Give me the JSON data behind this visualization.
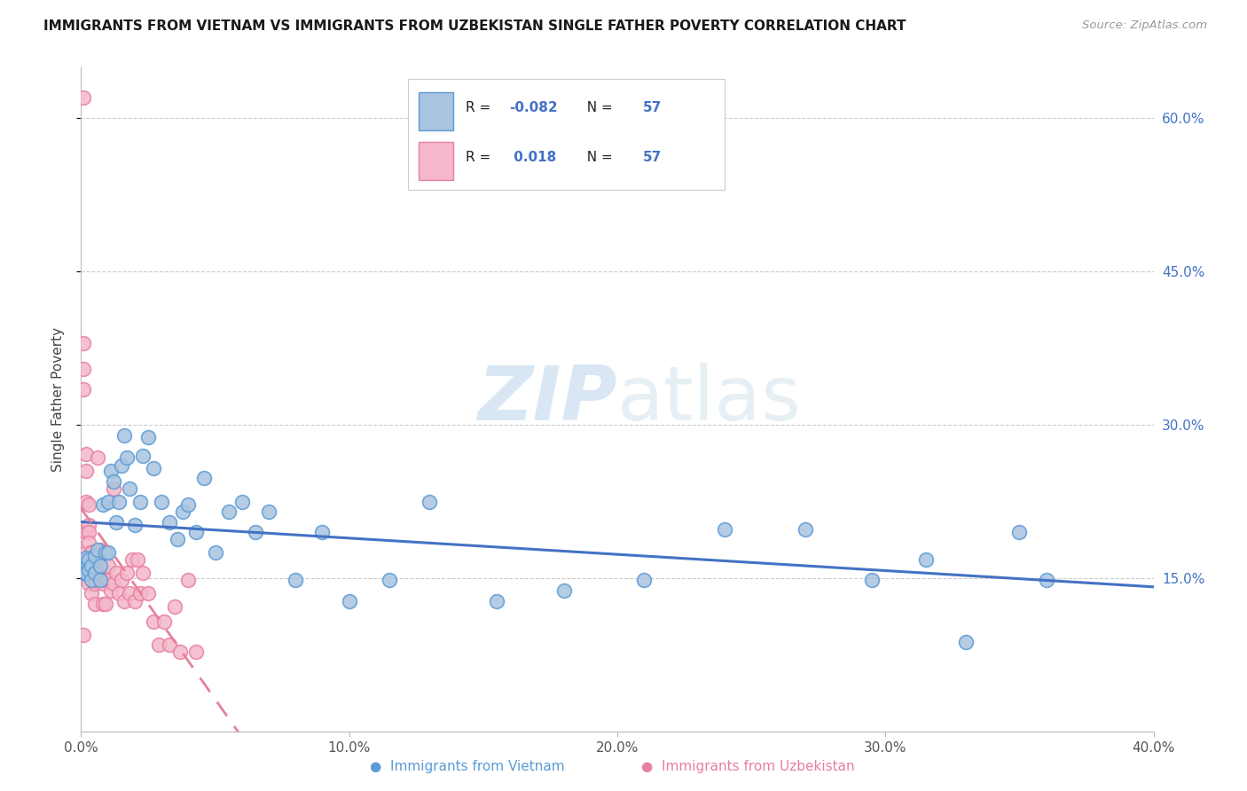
{
  "title": "IMMIGRANTS FROM VIETNAM VS IMMIGRANTS FROM UZBEKISTAN SINGLE FATHER POVERTY CORRELATION CHART",
  "source": "Source: ZipAtlas.com",
  "ylabel": "Single Father Poverty",
  "xlim": [
    0.0,
    0.4
  ],
  "ylim": [
    0.0,
    0.65
  ],
  "xticks": [
    0.0,
    0.1,
    0.2,
    0.3,
    0.4
  ],
  "yticks": [
    0.15,
    0.3,
    0.45,
    0.6
  ],
  "right_ytick_labels": [
    "15.0%",
    "30.0%",
    "45.0%",
    "60.0%"
  ],
  "xtick_labels": [
    "0.0%",
    "10.0%",
    "20.0%",
    "30.0%",
    "40.0%"
  ],
  "color_vietnam_fill": "#a8c4e0",
  "color_vietnam_edge": "#5b9bd5",
  "color_uzbekistan_fill": "#f4b8ca",
  "color_uzbekistan_edge": "#e87fa0",
  "color_vietnam_line": "#4472c4",
  "color_uzbekistan_line": "#e8809a",
  "watermark_color": "#cce0f0",
  "legend_r_color": "#4472c4",
  "legend_n_color": "#4472c4",
  "vietnam_x": [
    0.001,
    0.001,
    0.002,
    0.002,
    0.003,
    0.003,
    0.004,
    0.004,
    0.005,
    0.005,
    0.006,
    0.007,
    0.007,
    0.008,
    0.009,
    0.01,
    0.01,
    0.011,
    0.012,
    0.013,
    0.014,
    0.015,
    0.016,
    0.017,
    0.018,
    0.02,
    0.022,
    0.023,
    0.025,
    0.027,
    0.03,
    0.033,
    0.036,
    0.038,
    0.04,
    0.043,
    0.046,
    0.05,
    0.055,
    0.06,
    0.065,
    0.07,
    0.08,
    0.09,
    0.1,
    0.115,
    0.13,
    0.155,
    0.18,
    0.21,
    0.24,
    0.27,
    0.295,
    0.315,
    0.33,
    0.35,
    0.36
  ],
  "vietnam_y": [
    0.165,
    0.155,
    0.17,
    0.155,
    0.168,
    0.158,
    0.162,
    0.148,
    0.172,
    0.155,
    0.178,
    0.148,
    0.162,
    0.222,
    0.175,
    0.225,
    0.175,
    0.255,
    0.245,
    0.205,
    0.225,
    0.26,
    0.29,
    0.268,
    0.238,
    0.202,
    0.225,
    0.27,
    0.288,
    0.258,
    0.225,
    0.205,
    0.188,
    0.215,
    0.222,
    0.195,
    0.248,
    0.175,
    0.215,
    0.225,
    0.195,
    0.215,
    0.148,
    0.195,
    0.128,
    0.148,
    0.225,
    0.128,
    0.138,
    0.148,
    0.198,
    0.198,
    0.148,
    0.168,
    0.088,
    0.195,
    0.148
  ],
  "uzbekistan_x": [
    0.001,
    0.001,
    0.001,
    0.001,
    0.001,
    0.001,
    0.002,
    0.002,
    0.002,
    0.002,
    0.002,
    0.003,
    0.003,
    0.003,
    0.003,
    0.003,
    0.004,
    0.004,
    0.004,
    0.004,
    0.005,
    0.005,
    0.005,
    0.005,
    0.006,
    0.006,
    0.007,
    0.007,
    0.008,
    0.008,
    0.009,
    0.009,
    0.01,
    0.01,
    0.011,
    0.012,
    0.012,
    0.013,
    0.014,
    0.015,
    0.016,
    0.017,
    0.018,
    0.019,
    0.02,
    0.021,
    0.022,
    0.023,
    0.025,
    0.027,
    0.029,
    0.031,
    0.033,
    0.035,
    0.037,
    0.04,
    0.043
  ],
  "uzbekistan_y": [
    0.62,
    0.38,
    0.355,
    0.335,
    0.155,
    0.095,
    0.272,
    0.255,
    0.225,
    0.195,
    0.175,
    0.222,
    0.202,
    0.195,
    0.185,
    0.145,
    0.175,
    0.155,
    0.135,
    0.175,
    0.145,
    0.125,
    0.148,
    0.158,
    0.268,
    0.158,
    0.178,
    0.148,
    0.145,
    0.125,
    0.148,
    0.125,
    0.162,
    0.148,
    0.138,
    0.145,
    0.238,
    0.155,
    0.135,
    0.148,
    0.128,
    0.155,
    0.135,
    0.168,
    0.128,
    0.168,
    0.135,
    0.155,
    0.135,
    0.108,
    0.085,
    0.108,
    0.085,
    0.122,
    0.078,
    0.148,
    0.078
  ]
}
